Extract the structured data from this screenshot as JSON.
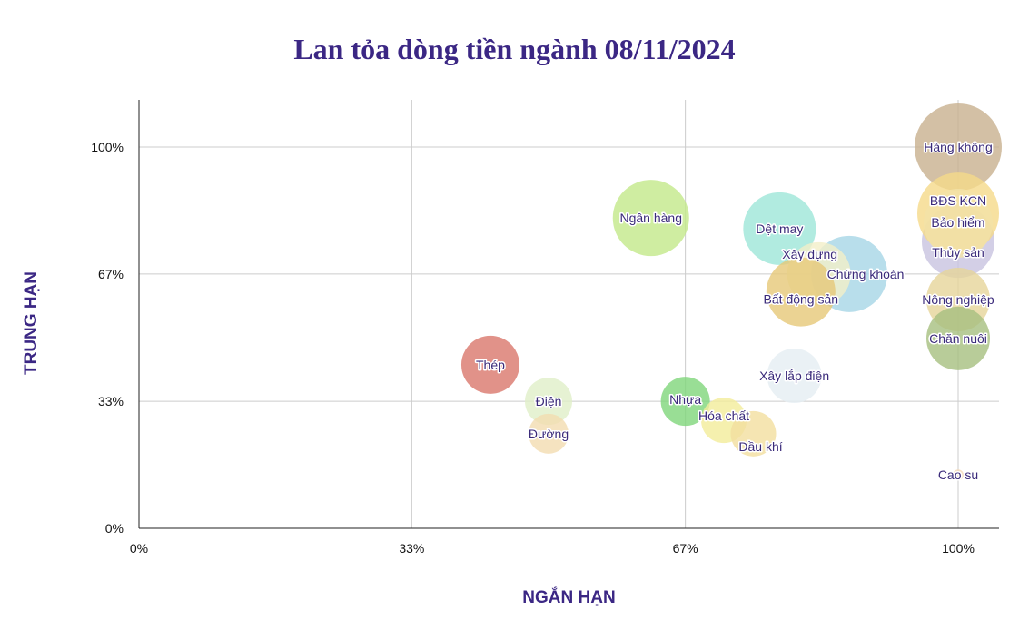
{
  "chart_data": {
    "type": "scatter",
    "title": "Lan tỏa dòng tiền ngành 08/11/2024",
    "xlabel": "NGẮN HẠN",
    "ylabel": "TRUNG HẠN",
    "xlim": [
      0,
      1.05
    ],
    "ylim": [
      0,
      1.12
    ],
    "grid": true,
    "xticks": [
      {
        "v": 0,
        "label": "0%"
      },
      {
        "v": 0.333,
        "label": "33%"
      },
      {
        "v": 0.667,
        "label": "67%"
      },
      {
        "v": 1,
        "label": "100%"
      }
    ],
    "yticks": [
      {
        "v": 0,
        "label": "0%"
      },
      {
        "v": 0.333,
        "label": "33%"
      },
      {
        "v": 0.667,
        "label": "67%"
      },
      {
        "v": 1,
        "label": "100%"
      }
    ],
    "points": [
      {
        "name": "Hàng không",
        "x": 1.0,
        "y": 1.0,
        "size": 48,
        "color": "#c8b08f"
      },
      {
        "name": "Thủy sản",
        "x": 1.0,
        "y": 0.752,
        "size": 40,
        "color": "#c8c3e0"
      },
      {
        "name": "BĐS KCN",
        "x": 1.0,
        "y": 0.826,
        "size": 45,
        "color": "#f5d98a"
      },
      {
        "name": "Bảo hiểm",
        "x": 1.0,
        "y": 0.8,
        "size": 38,
        "color": "#f3e2a8"
      },
      {
        "name": "Nông nghiệp",
        "x": 1.0,
        "y": 0.6,
        "size": 35,
        "color": "#e6d49a"
      },
      {
        "name": "Chăn nuôi",
        "x": 1.0,
        "y": 0.498,
        "size": 35,
        "color": "#a6bf80"
      },
      {
        "name": "Cao su",
        "x": 1.0,
        "y": 0.14,
        "size": 6,
        "color": "#f5d9b8"
      },
      {
        "name": "Ngân hàng",
        "x": 0.625,
        "y": 0.814,
        "size": 42,
        "color": "#c3e88a"
      },
      {
        "name": "Dệt may",
        "x": 0.782,
        "y": 0.786,
        "size": 40,
        "color": "#9ee6d8"
      },
      {
        "name": "Chứng khoán",
        "x": 0.867,
        "y": 0.667,
        "size": 42,
        "color": "#a6d6e6"
      },
      {
        "name": "Xây dựng",
        "x": 0.83,
        "y": 0.667,
        "size": 35,
        "color": "#f3efc8"
      },
      {
        "name": "Bất động sản",
        "x": 0.808,
        "y": 0.62,
        "size": 38,
        "color": "#e6c878"
      },
      {
        "name": "Xây lắp điện",
        "x": 0.8,
        "y": 0.4,
        "size": 30,
        "color": "#e5eef3"
      },
      {
        "name": "Thép",
        "x": 0.429,
        "y": 0.429,
        "size": 32,
        "color": "#d9776b"
      },
      {
        "name": "Điện",
        "x": 0.5,
        "y": 0.333,
        "size": 26,
        "color": "#e0efc8"
      },
      {
        "name": "Đường",
        "x": 0.5,
        "y": 0.248,
        "size": 22,
        "color": "#f3dcb0"
      },
      {
        "name": "Nhựa",
        "x": 0.667,
        "y": 0.333,
        "size": 27,
        "color": "#7fd67a"
      },
      {
        "name": "Hóa chất",
        "x": 0.714,
        "y": 0.283,
        "size": 25,
        "color": "#f2ec9a"
      },
      {
        "name": "Dầu khí",
        "x": 0.75,
        "y": 0.248,
        "size": 25,
        "color": "#f3df9f"
      }
    ]
  }
}
